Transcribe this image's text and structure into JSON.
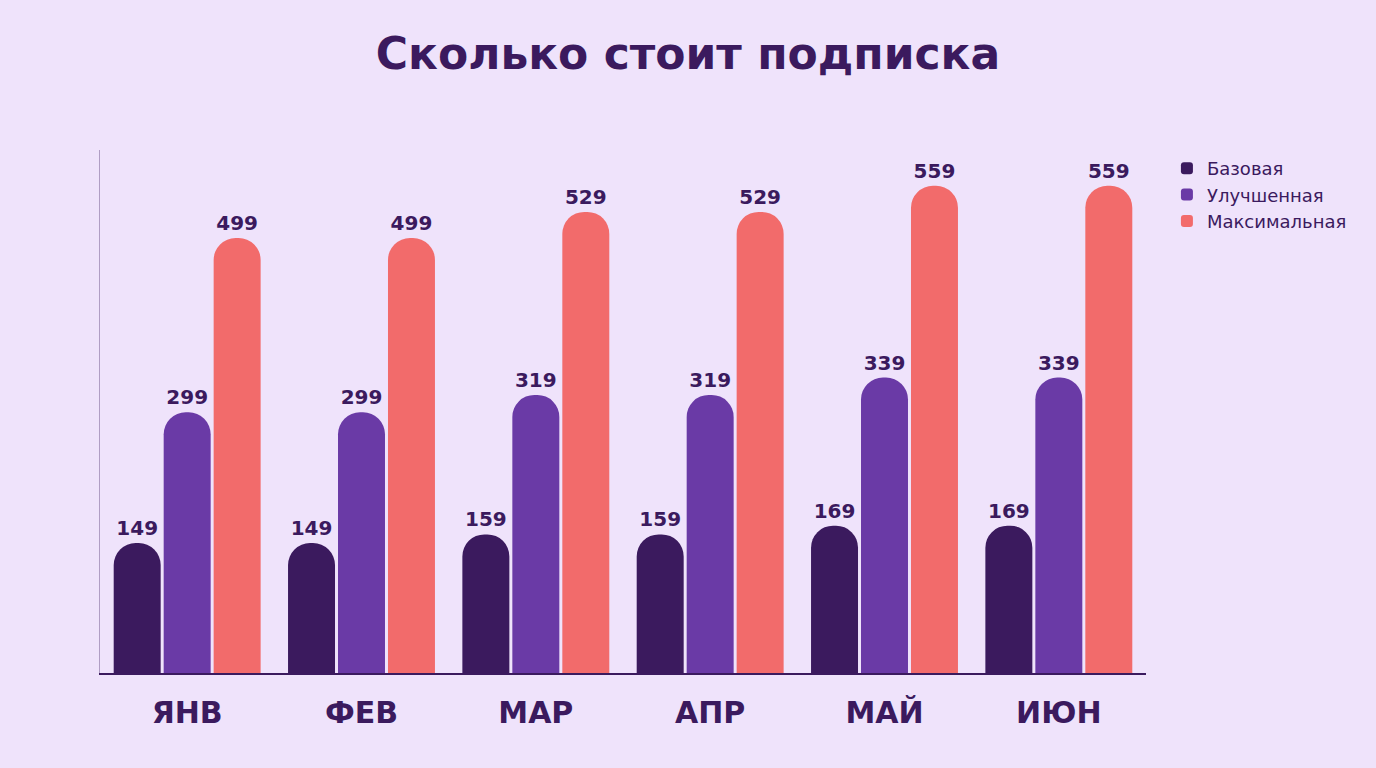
{
  "chart_data": {
    "type": "bar",
    "title": "Сколько стоит подписка",
    "categories": [
      "ЯНВ",
      "ФЕВ",
      "МАР",
      "АПР",
      "МАЙ",
      "ИЮН"
    ],
    "series": [
      {
        "name": "Базовая",
        "color": "#3b1a5e",
        "values": [
          149,
          149,
          159,
          159,
          169,
          169
        ]
      },
      {
        "name": "Улучшенная",
        "color": "#6a3aa6",
        "values": [
          299,
          299,
          319,
          319,
          339,
          339
        ]
      },
      {
        "name": "Максимальная",
        "color": "#f26b6b",
        "values": [
          499,
          499,
          529,
          529,
          559,
          559
        ]
      }
    ],
    "ylim": [
      0,
      600
    ],
    "grid": false,
    "legend": "right",
    "data_labels": true,
    "tick_labels": "x"
  }
}
